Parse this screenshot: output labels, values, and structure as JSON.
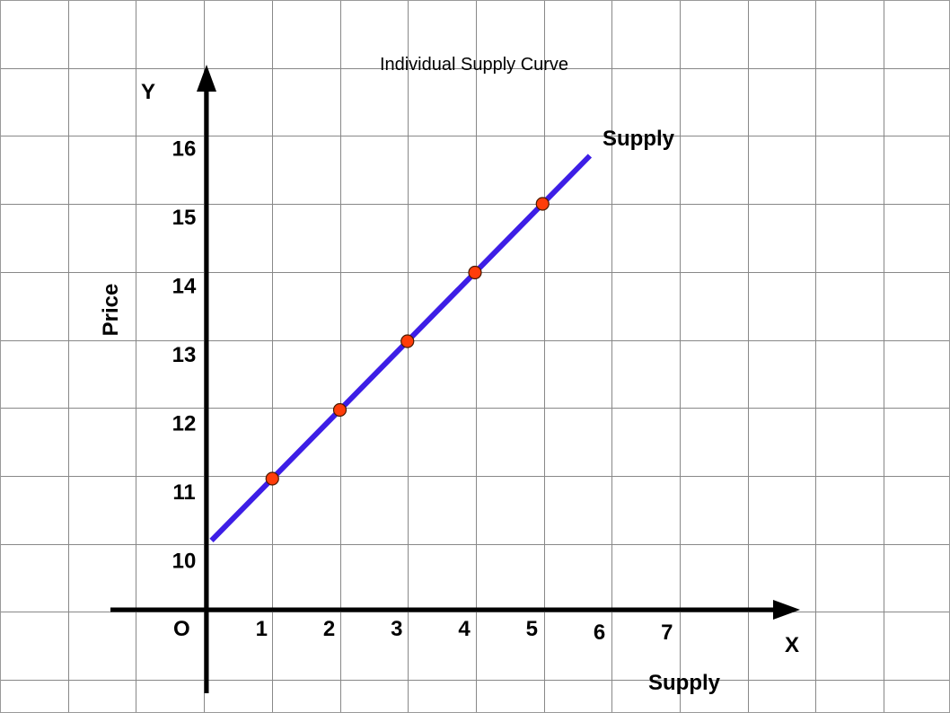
{
  "chart_data": {
    "type": "line",
    "title": "Individual Supply Curve",
    "xlabel": "Supply",
    "ylabel": "Price",
    "x_axis_letter": "X",
    "y_axis_letter": "Y",
    "origin_label": "O",
    "x_ticks": [
      "1",
      "2",
      "3",
      "4",
      "5",
      "6",
      "7"
    ],
    "y_ticks": [
      "10",
      "11",
      "12",
      "13",
      "14",
      "15",
      "16"
    ],
    "grid": true,
    "series": [
      {
        "name": "Supply",
        "line": {
          "x": [
            0.1,
            5.7
          ],
          "y": [
            10.1,
            15.7
          ]
        },
        "points": {
          "x": [
            1,
            2,
            3,
            4,
            5
          ],
          "y": [
            11,
            12,
            13,
            14,
            15
          ]
        }
      }
    ],
    "colors": {
      "line": "#3d1ee6",
      "points": "#ff3d0a",
      "label": "#3d1ee6"
    }
  }
}
